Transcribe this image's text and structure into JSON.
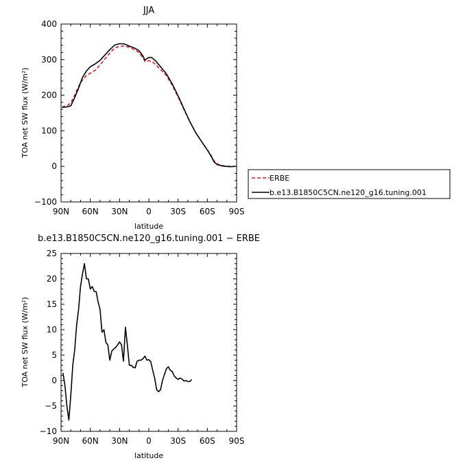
{
  "chart_data": [
    {
      "type": "line",
      "title": "JJA",
      "xlabel": "latitude",
      "ylabel": "TOA net SW flux (W/m²)",
      "xlim": [
        90,
        -90
      ],
      "ylim": [
        -100,
        400
      ],
      "x_tick_labels": [
        "90N",
        "60N",
        "30N",
        "0",
        "30S",
        "60S",
        "90S"
      ],
      "y_tick_labels": [
        "400",
        "300",
        "200",
        "100",
        "0",
        "−100"
      ],
      "legend": [
        "ERBE",
        "b.e13.B1850C5CN.ne120_g16.tuning.001"
      ],
      "legend_placement": "right",
      "series": [
        {
          "name": "ERBE",
          "color": "#e8141c",
          "style": "dashed",
          "points": [
            [
              89,
              167
            ],
            [
              84,
              170
            ],
            [
              80,
              178
            ],
            [
              76,
              200
            ],
            [
              72,
              225
            ],
            [
              68,
              243
            ],
            [
              64,
              255
            ],
            [
              60,
              262
            ],
            [
              55,
              270
            ],
            [
              50,
              285
            ],
            [
              45,
              302
            ],
            [
              40,
              318
            ],
            [
              35,
              333
            ],
            [
              30,
              337
            ],
            [
              25,
              338
            ],
            [
              20,
              335
            ],
            [
              15,
              328
            ],
            [
              10,
              320
            ],
            [
              6,
              305
            ],
            [
              4,
              295
            ],
            [
              0,
              297
            ],
            [
              -4,
              293
            ],
            [
              -8,
              283
            ],
            [
              -12,
              272
            ],
            [
              -18,
              255
            ],
            [
              -24,
              228
            ],
            [
              -30,
              195
            ],
            [
              -36,
              160
            ],
            [
              -42,
              125
            ],
            [
              -48,
              95
            ],
            [
              -54,
              70
            ],
            [
              -60,
              47
            ],
            [
              -64,
              30
            ],
            [
              -67,
              15
            ],
            [
              -70,
              7
            ],
            [
              -74,
              3
            ],
            [
              -78,
              1
            ],
            [
              -84,
              0
            ],
            [
              -89,
              0
            ]
          ]
        },
        {
          "name": "b.e13.B1850C5CN.ne120_g16.tuning.001",
          "color": "#000000",
          "style": "solid",
          "points": [
            [
              89,
              166
            ],
            [
              84,
              167
            ],
            [
              80,
              170
            ],
            [
              76,
              193
            ],
            [
              72,
              220
            ],
            [
              68,
              250
            ],
            [
              64,
              268
            ],
            [
              60,
              280
            ],
            [
              55,
              288
            ],
            [
              50,
              298
            ],
            [
              45,
              313
            ],
            [
              40,
              328
            ],
            [
              35,
              341
            ],
            [
              30,
              345
            ],
            [
              25,
              344
            ],
            [
              20,
              338
            ],
            [
              15,
              333
            ],
            [
              10,
              325
            ],
            [
              6,
              310
            ],
            [
              4,
              298
            ],
            [
              2,
              303
            ],
            [
              0,
              306
            ],
            [
              -3,
              306
            ],
            [
              -7,
              296
            ],
            [
              -12,
              280
            ],
            [
              -18,
              260
            ],
            [
              -24,
              232
            ],
            [
              -30,
              198
            ],
            [
              -36,
              162
            ],
            [
              -42,
              126
            ],
            [
              -48,
              95
            ],
            [
              -54,
              70
            ],
            [
              -60,
              46
            ],
            [
              -64,
              28
            ],
            [
              -67,
              12
            ],
            [
              -70,
              5
            ],
            [
              -74,
              2
            ],
            [
              -78,
              0
            ],
            [
              -84,
              -1
            ],
            [
              -89,
              0
            ]
          ]
        }
      ]
    },
    {
      "type": "line",
      "title": "b.e13.B1850C5CN.ne120_g16.tuning.001 − ERBE",
      "xlabel": "latitude",
      "ylabel": "TOA net SW flux (W/m²)",
      "xlim": [
        90,
        -90
      ],
      "ylim": [
        -10,
        25
      ],
      "x_tick_labels": [
        "90N",
        "60N",
        "30N",
        "0",
        "30S",
        "60S",
        "90S"
      ],
      "y_tick_labels": [
        "25",
        "20",
        "15",
        "10",
        "5",
        "0",
        "−5",
        "−10"
      ],
      "series": [
        {
          "color": "#000000",
          "style": "solid",
          "points": [
            [
              88,
              1.5
            ],
            [
              86,
              -1
            ],
            [
              84,
              -5
            ],
            [
              82,
              -7.8
            ],
            [
              80,
              -3
            ],
            [
              78,
              3
            ],
            [
              76,
              6
            ],
            [
              74,
              11
            ],
            [
              72,
              14
            ],
            [
              70,
              18.5
            ],
            [
              68,
              21
            ],
            [
              66,
              23
            ],
            [
              64,
              20
            ],
            [
              62,
              20
            ],
            [
              60,
              18
            ],
            [
              58,
              18.5
            ],
            [
              56,
              17.5
            ],
            [
              54,
              17.5
            ],
            [
              52,
              15.5
            ],
            [
              50,
              14
            ],
            [
              48,
              9.5
            ],
            [
              46,
              10
            ],
            [
              44,
              7.5
            ],
            [
              42,
              7
            ],
            [
              40,
              4
            ],
            [
              38,
              5.8
            ],
            [
              36,
              6.2
            ],
            [
              34,
              6.5
            ],
            [
              32,
              7
            ],
            [
              30,
              7.6
            ],
            [
              28,
              7
            ],
            [
              26,
              3.8
            ],
            [
              24,
              10.5
            ],
            [
              22,
              7
            ],
            [
              20,
              3
            ],
            [
              18,
              3
            ],
            [
              16,
              2.6
            ],
            [
              14,
              2.5
            ],
            [
              12,
              3.8
            ],
            [
              10,
              4
            ],
            [
              8,
              4
            ],
            [
              6,
              4.3
            ],
            [
              4,
              4.8
            ],
            [
              2,
              4
            ],
            [
              0,
              4.1
            ],
            [
              -2,
              3.7
            ],
            [
              -4,
              2
            ],
            [
              -6,
              0.5
            ],
            [
              -8,
              -1.8
            ],
            [
              -10,
              -2.2
            ],
            [
              -12,
              -1.8
            ],
            [
              -14,
              0
            ],
            [
              -16,
              1.2
            ],
            [
              -18,
              2.3
            ],
            [
              -20,
              2.7
            ],
            [
              -22,
              2
            ],
            [
              -24,
              1.8
            ],
            [
              -26,
              0.9
            ],
            [
              -28,
              0.5
            ],
            [
              -30,
              0.2
            ],
            [
              -32,
              0.5
            ],
            [
              -34,
              0.3
            ],
            [
              -36,
              -0.1
            ],
            [
              -38,
              0
            ],
            [
              -40,
              -0.2
            ],
            [
              -42,
              -0.2
            ],
            [
              -44,
              0.2
            ]
          ]
        }
      ]
    }
  ]
}
